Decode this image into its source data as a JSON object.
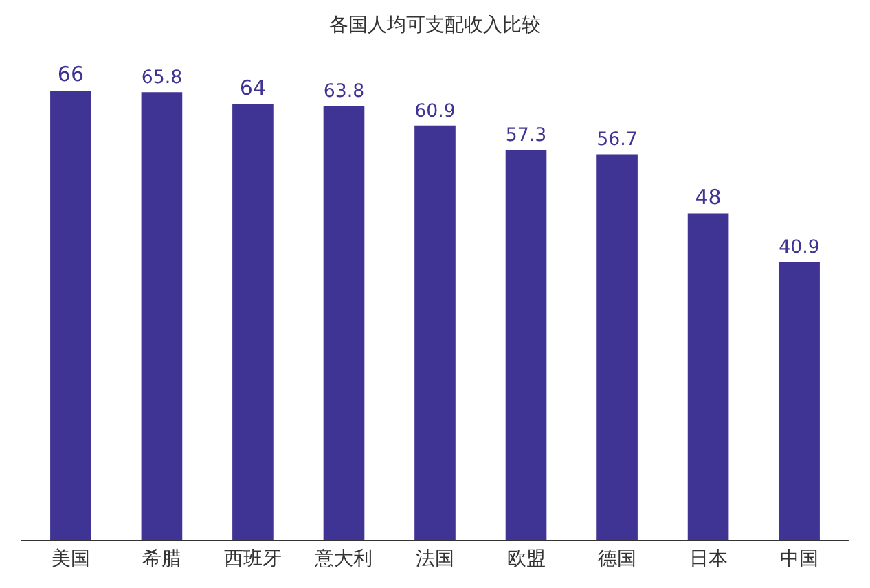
{
  "chart_data": {
    "type": "bar",
    "title": "各国人均可支配收入比较",
    "categories": [
      "美国",
      "希腊",
      "西班牙",
      "意大利",
      "法国",
      "欧盟",
      "德国",
      "日本",
      "中国"
    ],
    "values": [
      66,
      65.8,
      64,
      63.8,
      60.9,
      57.3,
      56.7,
      48,
      40.9
    ],
    "color": "#3f3393",
    "data_labels": true
  }
}
